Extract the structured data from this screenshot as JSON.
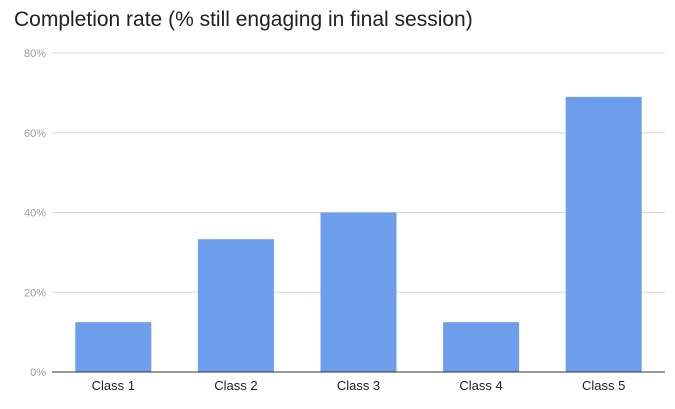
{
  "chart_data": {
    "type": "bar",
    "title": "Completion rate (% still engaging in final session)",
    "xlabel": "",
    "ylabel": "",
    "categories": [
      "Class 1",
      "Class 2",
      "Class 3",
      "Class 4",
      "Class 5"
    ],
    "values": [
      12.5,
      33.3,
      40,
      12.5,
      69
    ],
    "ylim": [
      0,
      80
    ],
    "yticks": [
      0,
      20,
      40,
      60,
      80
    ],
    "ytick_labels": [
      "0%",
      "20%",
      "40%",
      "60%",
      "80%"
    ],
    "grid": true,
    "legend": "none",
    "bar_color": "#6d9eeb"
  }
}
